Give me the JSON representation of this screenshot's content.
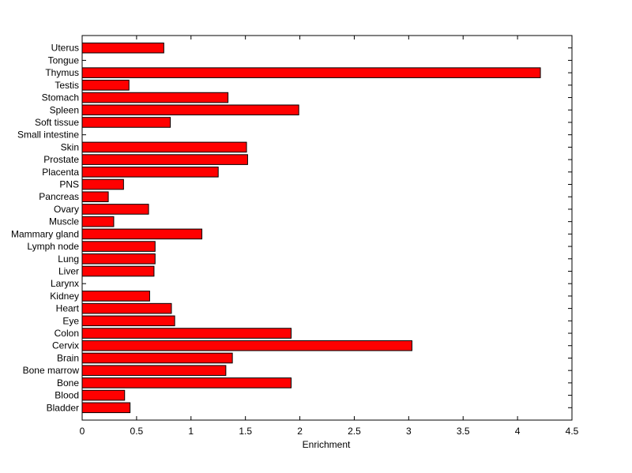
{
  "chart_data": {
    "type": "bar",
    "orientation": "horizontal",
    "title": "",
    "xlabel": "Enrichment",
    "ylabel": "",
    "xlim": [
      0,
      4.5
    ],
    "xticks": [
      "0",
      "0.5",
      "1",
      "1.5",
      "2",
      "2.5",
      "3",
      "3.5",
      "4",
      "4.5"
    ],
    "grid": false,
    "bar_color": "#ff0000",
    "edge_color": "#000000",
    "categories": [
      "Bladder",
      "Blood",
      "Bone",
      "Bone marrow",
      "Brain",
      "Cervix",
      "Colon",
      "Eye",
      "Heart",
      "Kidney",
      "Larynx",
      "Liver",
      "Lung",
      "Lymph node",
      "Mammary gland",
      "Muscle",
      "Ovary",
      "Pancreas",
      "PNS",
      "Placenta",
      "Prostate",
      "Skin",
      "Small intestine",
      "Soft tissue",
      "Spleen",
      "Stomach",
      "Testis",
      "Thymus",
      "Tongue",
      "Uterus"
    ],
    "values": [
      0.44,
      0.39,
      1.92,
      1.32,
      1.38,
      3.03,
      1.92,
      0.85,
      0.82,
      0.62,
      0,
      0.66,
      0.67,
      0.67,
      1.1,
      0.29,
      0.61,
      0.24,
      0.38,
      1.25,
      1.52,
      1.51,
      0,
      0.81,
      1.99,
      1.34,
      0.43,
      4.21,
      0,
      0.75
    ]
  }
}
